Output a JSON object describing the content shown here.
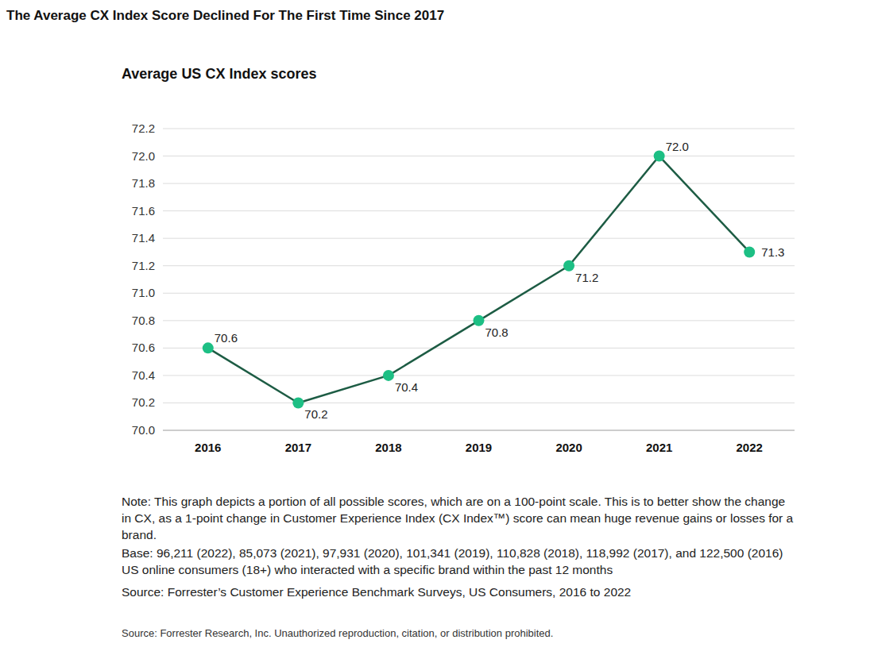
{
  "chart_data": {
    "type": "line",
    "title": "The Average CX Index Score Declined For The First Time Since 2017",
    "subtitle": "Average US CX Index scores",
    "categories": [
      "2016",
      "2017",
      "2018",
      "2019",
      "2020",
      "2021",
      "2022"
    ],
    "values": [
      70.6,
      70.2,
      70.4,
      70.8,
      71.2,
      72.0,
      71.3
    ],
    "value_labels": [
      "70.6",
      "70.2",
      "70.4",
      "70.8",
      "71.2",
      "72.0",
      "71.3"
    ],
    "color": "#1d5c44",
    "marker": "circle",
    "data_labels": true,
    "grid": true,
    "ylim": [
      70.0,
      72.2
    ],
    "yticks": [
      {
        "value": 70.0,
        "label": "70.0"
      },
      70.2,
      70.4,
      70.6,
      70.8,
      {
        "value": 71.0,
        "label": "71.0"
      },
      71.2,
      71.4,
      71.6,
      71.8,
      {
        "value": 72.0,
        "label": "72.0"
      },
      72.2
    ],
    "note": "Note: This graph depicts a portion of all possible scores, which are on a 100-point scale. This is to better show the change in CX, as a 1-point change in Customer Experience Index (CX Index™) score can mean huge revenue gains or losses for a brand.",
    "base": "Base: 96,211 (2022), 85,073 (2021), 97,931 (2020), 101,341 (2019), 110,828 (2018), 118,992 (2017), and 122,500 (2016) US online consumers (18+) who interacted with a specific brand within the past 12 months",
    "source": "Source: Forrester’s Customer Experience Benchmark Surveys, US Consumers, 2016 to 2022",
    "footer": "Source: Forrester Research, Inc. Unauthorized reproduction, citation, or distribution prohibited."
  }
}
